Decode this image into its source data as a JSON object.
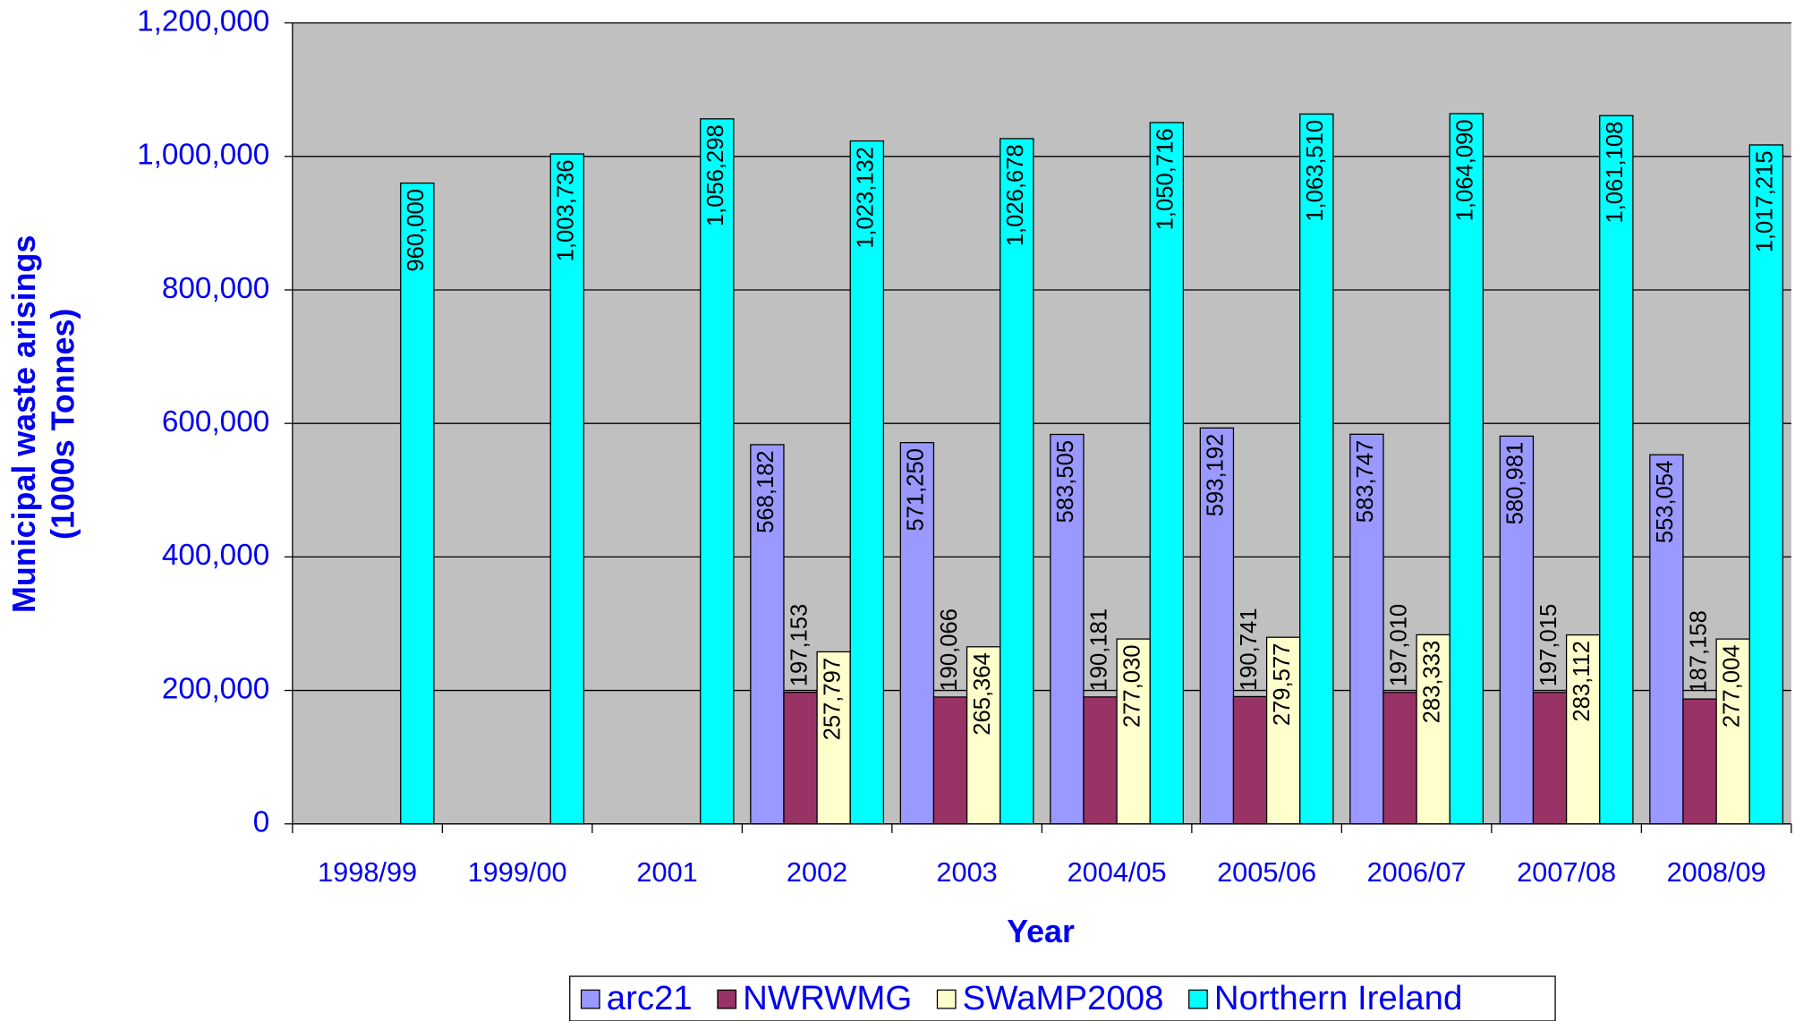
{
  "chart_data": {
    "type": "bar",
    "x_label": "Year",
    "y_label": [
      "Municipal waste arisings",
      "(1000s Tonnes)"
    ],
    "categories": [
      "1998/99",
      "1999/00",
      "2001",
      "2002",
      "2003",
      "2004/05",
      "2005/06",
      "2006/07",
      "2007/08",
      "2008/09"
    ],
    "series": [
      {
        "name": "arc21",
        "color": "#9999ff",
        "values": [
          null,
          null,
          null,
          568182,
          571250,
          583505,
          593192,
          583747,
          580981,
          553054
        ],
        "value_labels": [
          null,
          null,
          null,
          "568,182",
          "571,250",
          "583,505",
          "593,192",
          "583,747",
          "580,981",
          "553,054"
        ]
      },
      {
        "name": "NWRWMG",
        "color": "#993366",
        "values": [
          null,
          null,
          null,
          197153,
          190066,
          190181,
          190741,
          197010,
          197015,
          187158
        ],
        "value_labels": [
          null,
          null,
          null,
          "197,153",
          "190,066",
          "190,181",
          "190,741",
          "197,010",
          "197,015",
          "187,158"
        ]
      },
      {
        "name": "SWaMP2008",
        "color": "#ffffcc",
        "values": [
          null,
          null,
          null,
          257797,
          265364,
          277030,
          279577,
          283333,
          283112,
          277004
        ],
        "value_labels": [
          null,
          null,
          null,
          "257,797",
          "265,364",
          "277,030",
          "279,577",
          "283,333",
          "283,112",
          "277,004"
        ]
      },
      {
        "name": "Northern Ireland",
        "color": "#00ffff",
        "values": [
          960000,
          1003736,
          1056298,
          1023132,
          1026678,
          1050716,
          1063510,
          1064090,
          1061108,
          1017215
        ],
        "value_labels": [
          "960,000",
          "1,003,736",
          "1,056,298",
          "1,023,132",
          "1,026,678",
          "1,050,716",
          "1,063,510",
          "1,064,090",
          "1,061,108",
          "1,017,215"
        ]
      }
    ],
    "ylim": [
      0,
      1200000
    ],
    "yticks": [
      0,
      {
        "value": 200000,
        "label": "200,000"
      },
      {
        "value": 400000,
        "label": "400,000"
      },
      {
        "value": 600000,
        "label": "600,000"
      },
      {
        "value": 800000,
        "label": "800,000"
      },
      {
        "value": 1000000,
        "label": "1,000,000"
      },
      {
        "value": 1200000,
        "label": "1,200,000"
      }
    ],
    "grid": true,
    "plot_background": "#c0c0c0",
    "legend": "bottom"
  }
}
